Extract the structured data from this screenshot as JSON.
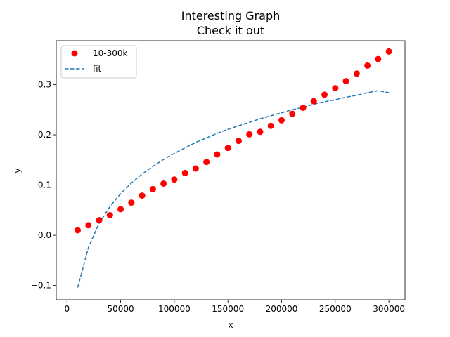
{
  "chart_data": {
    "type": "scatter",
    "title_line1": "Interesting Graph",
    "title_line2": "Check it out",
    "xlabel": "x",
    "ylabel": "y",
    "xlim": [
      -10000,
      315000
    ],
    "ylim": [
      -0.1285,
      0.3875
    ],
    "xticks": [
      0,
      50000,
      100000,
      150000,
      200000,
      250000,
      300000
    ],
    "xtick_labels": [
      "0",
      "50000",
      "100000",
      "150000",
      "200000",
      "250000",
      "300000"
    ],
    "yticks": [
      -0.1,
      0.0,
      0.1,
      0.2,
      0.3
    ],
    "ytick_labels": [
      "−0.1",
      "0.0",
      "0.1",
      "0.2",
      "0.3"
    ],
    "legend": {
      "placement": "upper-left",
      "entries": [
        {
          "label": "10-300k",
          "style": "marker",
          "color": "#ff0000"
        },
        {
          "label": "fit",
          "style": "dashed-line",
          "color": "#1f77b4"
        }
      ]
    },
    "series": [
      {
        "name": "10-300k",
        "kind": "points",
        "color": "#ff0000",
        "x": [
          10000,
          20000,
          30000,
          40000,
          50000,
          60000,
          70000,
          80000,
          90000,
          100000,
          110000,
          120000,
          130000,
          140000,
          150000,
          160000,
          170000,
          180000,
          190000,
          200000,
          210000,
          220000,
          230000,
          240000,
          250000,
          260000,
          270000,
          280000,
          290000,
          300000
        ],
        "y": [
          0.01,
          0.02,
          0.03,
          0.04,
          0.052,
          0.065,
          0.079,
          0.092,
          0.103,
          0.111,
          0.124,
          0.133,
          0.146,
          0.161,
          0.174,
          0.188,
          0.201,
          0.206,
          0.218,
          0.229,
          0.242,
          0.254,
          0.267,
          0.28,
          0.293,
          0.307,
          0.322,
          0.338,
          0.351,
          0.366
        ]
      },
      {
        "name": "fit",
        "kind": "dashed-line",
        "color": "#1f77b4",
        "x": [
          10000,
          20000,
          30000,
          40000,
          50000,
          60000,
          70000,
          80000,
          90000,
          100000,
          110000,
          120000,
          130000,
          140000,
          150000,
          160000,
          170000,
          180000,
          190000,
          200000,
          210000,
          220000,
          230000,
          240000,
          250000,
          260000,
          270000,
          280000,
          290000,
          300000
        ],
        "y": [
          -0.104,
          -0.024,
          0.024,
          0.057,
          0.083,
          0.104,
          0.122,
          0.137,
          0.151,
          0.163,
          0.174,
          0.185,
          0.194,
          0.203,
          0.211,
          0.218,
          0.225,
          0.232,
          0.238,
          0.244,
          0.25,
          0.255,
          0.261,
          0.266,
          0.27,
          0.275,
          0.279,
          0.284,
          0.288,
          0.284
        ]
      }
    ]
  }
}
